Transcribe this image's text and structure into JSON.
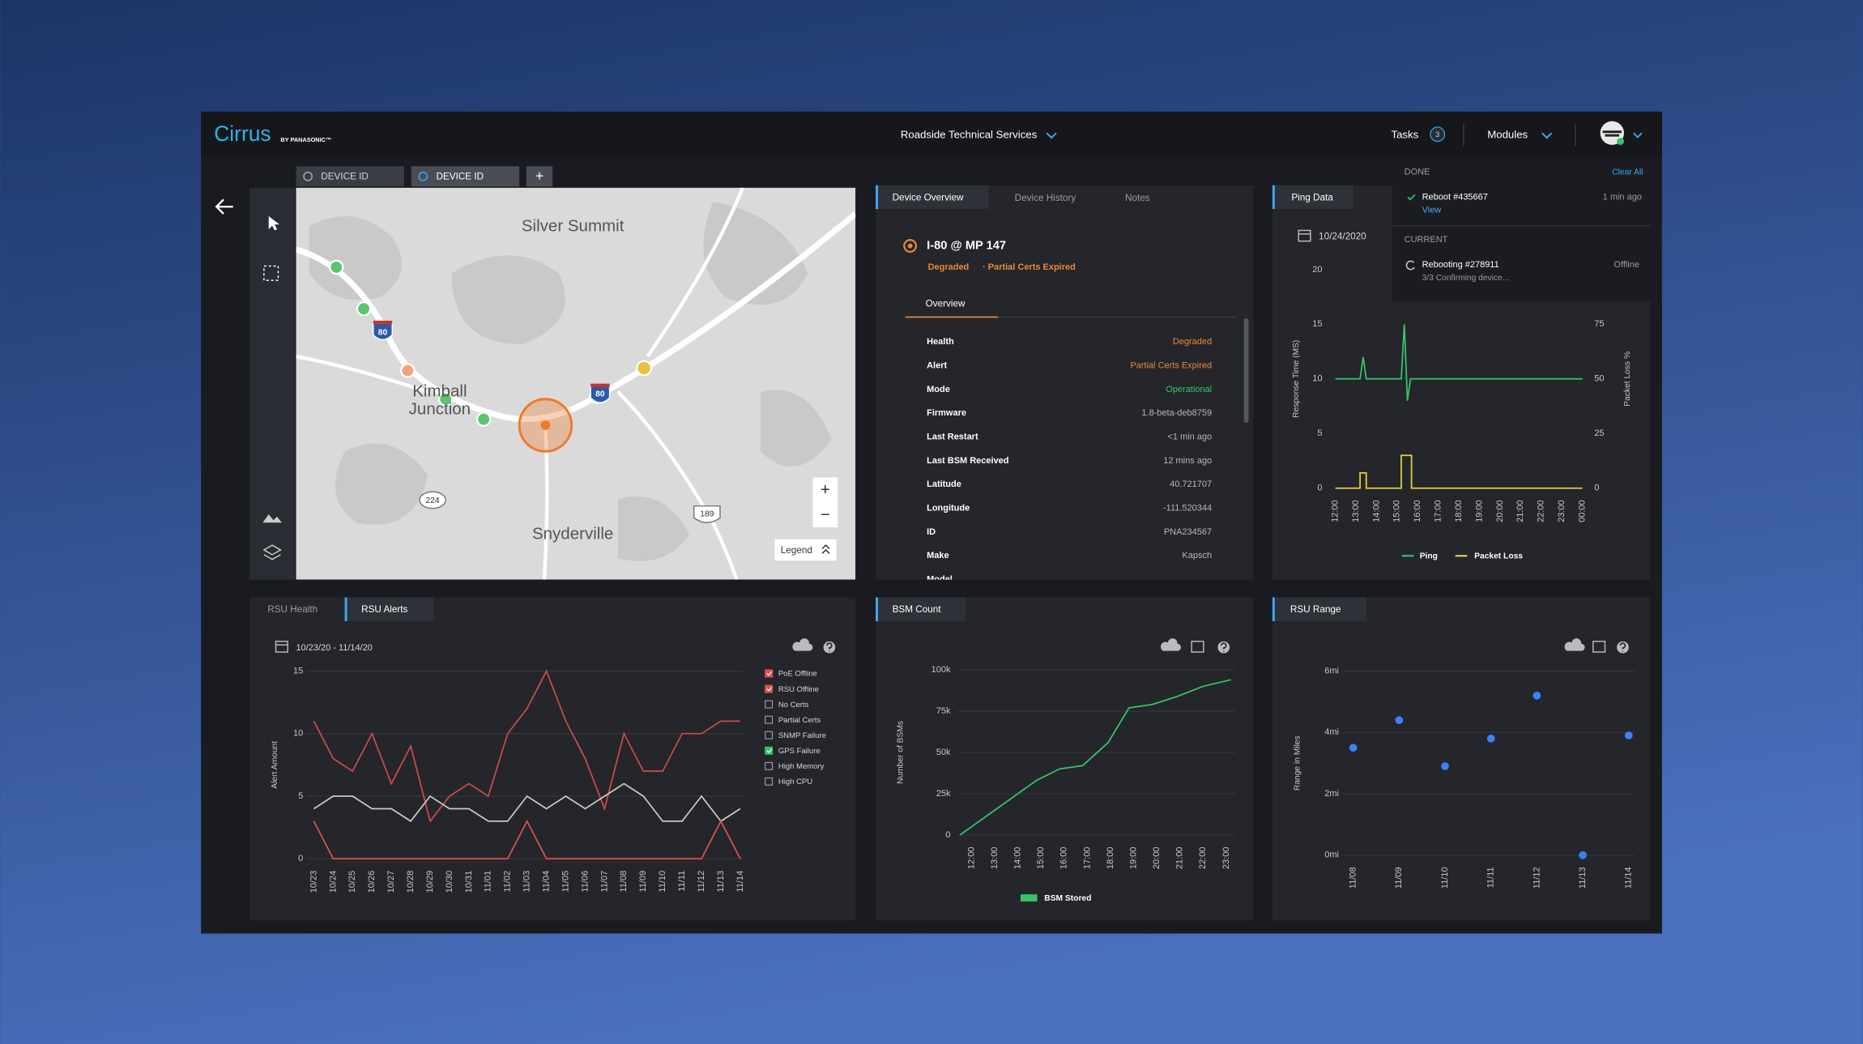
{
  "header": {
    "brand": "Cirrus",
    "brand_sub": "BY PANASONIC™",
    "workspace": "Roadside Technical Services",
    "tasks": "Tasks",
    "task_count": "3",
    "modules": "Modules"
  },
  "device_tabs": [
    "DEVICE ID",
    "DEVICE ID",
    "+"
  ],
  "map": {
    "silver_summit": "Silver Summit",
    "kimball_junction": [
      "Kimball",
      "Junction"
    ],
    "snyderville": "Snyderville",
    "shields": [
      "80",
      "80",
      "224",
      "189"
    ],
    "zoom_in": "+",
    "zoom_out": "−",
    "legend": "Legend"
  },
  "tasks_menu": {
    "done": "DONE",
    "clear_all": "Clear All",
    "done_task": "Reboot #435667",
    "done_time": "1 min ago",
    "view": "View",
    "current": "CURRENT",
    "current_task": "Rebooting #278911",
    "current_state": "Offline",
    "current_detail": "3/3 Confirming device..."
  },
  "device": {
    "tabs": [
      "Device Overview",
      "Device History",
      "Notes"
    ],
    "name": "I-80 @ MP 147",
    "status": "Degraded",
    "status_note": "· Partial Certs Expired",
    "subtab": "Overview",
    "rows": [
      {
        "label": "Health",
        "value": "Degraded",
        "color": "#e8893a"
      },
      {
        "label": "Alert",
        "value": "Partial Certs Expired",
        "color": "#e8893a"
      },
      {
        "label": "Mode",
        "value": "Operational",
        "color": "#35c46a"
      },
      {
        "label": "Firmware",
        "value": "1.8-beta-deb8759"
      },
      {
        "label": "Last Restart",
        "value": "<1 min ago"
      },
      {
        "label": "Last BSM Received",
        "value": "12 mins ago"
      },
      {
        "label": "Latitude",
        "value": "40.721707"
      },
      {
        "label": "Longitude",
        "value": "-111.520344"
      },
      {
        "label": "ID",
        "value": "PNA234567"
      },
      {
        "label": "Make",
        "value": "Kapsch"
      },
      {
        "label": "Model"
      }
    ]
  },
  "ping": {
    "tab": "Ping Data",
    "date": "10/24/2020",
    "chart": {
      "type": "line",
      "y_label": "Response Time (MS)",
      "y2_label": "Packet Loss %",
      "xlim": [
        12,
        24
      ],
      "xticks": [
        {
          "value": 12,
          "label": "12:00"
        },
        {
          "value": 13,
          "label": "13:00"
        },
        {
          "value": 14,
          "label": "14:00"
        },
        {
          "value": 15,
          "label": "15:00"
        },
        {
          "value": 16,
          "label": "16:00"
        },
        {
          "value": 17,
          "label": "17:00"
        },
        {
          "value": 18,
          "label": "18:00"
        },
        {
          "value": 19,
          "label": "19:00"
        },
        {
          "value": 20,
          "label": "20:00"
        },
        {
          "value": 21,
          "label": "21:00"
        },
        {
          "value": 22,
          "label": "22:00"
        },
        {
          "value": 23,
          "label": "23:00"
        },
        {
          "value": 24,
          "label": "00:00"
        }
      ],
      "ylim": [
        0,
        20
      ],
      "yticks": [
        0,
        5,
        10,
        15,
        20
      ],
      "y2lim": [
        0,
        100
      ],
      "y2ticks": [
        0,
        25,
        50,
        75
      ],
      "grid": false,
      "series": [
        {
          "name": "Ping",
          "color": "#35c46a",
          "x": [
            12,
            13.2,
            13.35,
            13.5,
            15.2,
            15.35,
            15.5,
            15.65,
            24
          ],
          "values": [
            10,
            10,
            12,
            10,
            10,
            15,
            8,
            10,
            10
          ]
        },
        {
          "name": "Packet Loss",
          "color": "#e6cf3c",
          "axis": "y2",
          "x": [
            12,
            13.2,
            13.2,
            13.5,
            13.5,
            15.2,
            15.2,
            15.7,
            15.7,
            24
          ],
          "values": [
            0,
            0,
            7,
            7,
            0,
            0,
            15,
            15,
            0,
            0
          ]
        }
      ]
    }
  },
  "alerts": {
    "tabs": [
      "RSU Health",
      "RSU Alerts"
    ],
    "date_range": "10/23/20 - 11/14/20",
    "legend": [
      {
        "name": "PoE Offline",
        "checked": true,
        "color": "#d9534f"
      },
      {
        "name": "RSU Offline",
        "checked": true,
        "color": "#d9534f"
      },
      {
        "name": "No Certs",
        "checked": false
      },
      {
        "name": "Partial Certs",
        "checked": false
      },
      {
        "name": "SNMP Failure",
        "checked": false
      },
      {
        "name": "GPS Failure",
        "checked": true,
        "color": "#35c46a"
      },
      {
        "name": "High Memory",
        "checked": false
      },
      {
        "name": "High CPU",
        "checked": false
      }
    ],
    "chart": {
      "type": "line",
      "y_label": "Alert Amount",
      "categories": [
        "10/23",
        "10/24",
        "10/25",
        "10/26",
        "10/27",
        "10/28",
        "10/29",
        "10/30",
        "10/31",
        "11/01",
        "11/02",
        "11/03",
        "11/04",
        "11/05",
        "11/06",
        "11/07",
        "11/08",
        "11/09",
        "11/10",
        "11/11",
        "11/12",
        "11/13",
        "11/14"
      ],
      "ylim": [
        0,
        15
      ],
      "yticks": [
        0,
        5,
        10,
        15
      ],
      "grid": true,
      "series": [
        {
          "name": "RSU Offline",
          "color": "#c94a4a",
          "values": [
            11,
            8,
            7,
            10,
            6,
            9,
            3,
            5,
            6,
            5,
            10,
            12,
            15,
            11,
            8,
            4,
            10,
            7,
            7,
            10,
            10,
            11,
            11
          ]
        },
        {
          "name": "GPS Failure",
          "color": "#c8ccbb",
          "values": [
            4,
            5,
            5,
            4,
            4,
            3,
            5,
            4,
            4,
            3,
            3,
            5,
            4,
            5,
            4,
            5,
            6,
            5,
            3,
            3,
            5,
            3,
            4
          ]
        },
        {
          "name": "PoE Offline",
          "color": "#d9534f",
          "values": [
            3,
            0,
            0,
            0,
            0,
            0,
            0,
            0,
            0,
            0,
            0,
            3,
            0,
            0,
            0,
            0,
            0,
            0,
            0,
            0,
            0,
            3,
            0
          ]
        }
      ]
    }
  },
  "bsm": {
    "tab": "BSM Count",
    "chart": {
      "type": "line",
      "y_label": "Number of BSMs",
      "xlim": [
        11.5,
        23.25
      ],
      "xticks": [
        {
          "value": 12,
          "label": "12:00"
        },
        {
          "value": 13,
          "label": "13:00"
        },
        {
          "value": 14,
          "label": "14:00"
        },
        {
          "value": 15,
          "label": "15:00"
        },
        {
          "value": 16,
          "label": "16:00"
        },
        {
          "value": 17,
          "label": "17:00"
        },
        {
          "value": 18,
          "label": "18:00"
        },
        {
          "value": 19,
          "label": "19:00"
        },
        {
          "value": 20,
          "label": "20:00"
        },
        {
          "value": 21,
          "label": "21:00"
        },
        {
          "value": 22,
          "label": "22:00"
        },
        {
          "value": 23,
          "label": "23:00"
        }
      ],
      "ylim": [
        0,
        100000
      ],
      "yticks": [
        0,
        {
          "value": 25000,
          "label": "25k"
        },
        {
          "value": 50000,
          "label": "50k"
        },
        {
          "value": 75000,
          "label": "75k"
        },
        {
          "value": 100000,
          "label": "100k"
        }
      ],
      "grid": true,
      "series": [
        {
          "name": "BSM Stored",
          "color": "#35c46a",
          "x": [
            11.5,
            12.6,
            13.9,
            14.8,
            15.8,
            16.8,
            17.9,
            18.8,
            19.8,
            20.9,
            22.0,
            23.2
          ],
          "values": [
            0,
            11000,
            24000,
            33000,
            40000,
            42000,
            56000,
            77000,
            79000,
            84000,
            90000,
            94000
          ]
        }
      ]
    }
  },
  "range": {
    "tab": "RSU Range",
    "chart": {
      "type": "scatter",
      "y_label": "Range in Miles",
      "categories": [
        "11/08",
        "11/09",
        "11/10",
        "11/11",
        "11/12",
        "11/13",
        "11/14"
      ],
      "values": [
        3.5,
        4.4,
        2.9,
        3.8,
        5.2,
        0,
        3.9
      ],
      "color": "#3b82f6",
      "ylim": [
        0,
        6
      ],
      "yticks": [
        {
          "value": 0,
          "label": "0mi"
        },
        {
          "value": 2,
          "label": "2mi"
        },
        {
          "value": 4,
          "label": "4mi"
        },
        {
          "value": 6,
          "label": "6mi"
        }
      ],
      "grid": true
    }
  }
}
